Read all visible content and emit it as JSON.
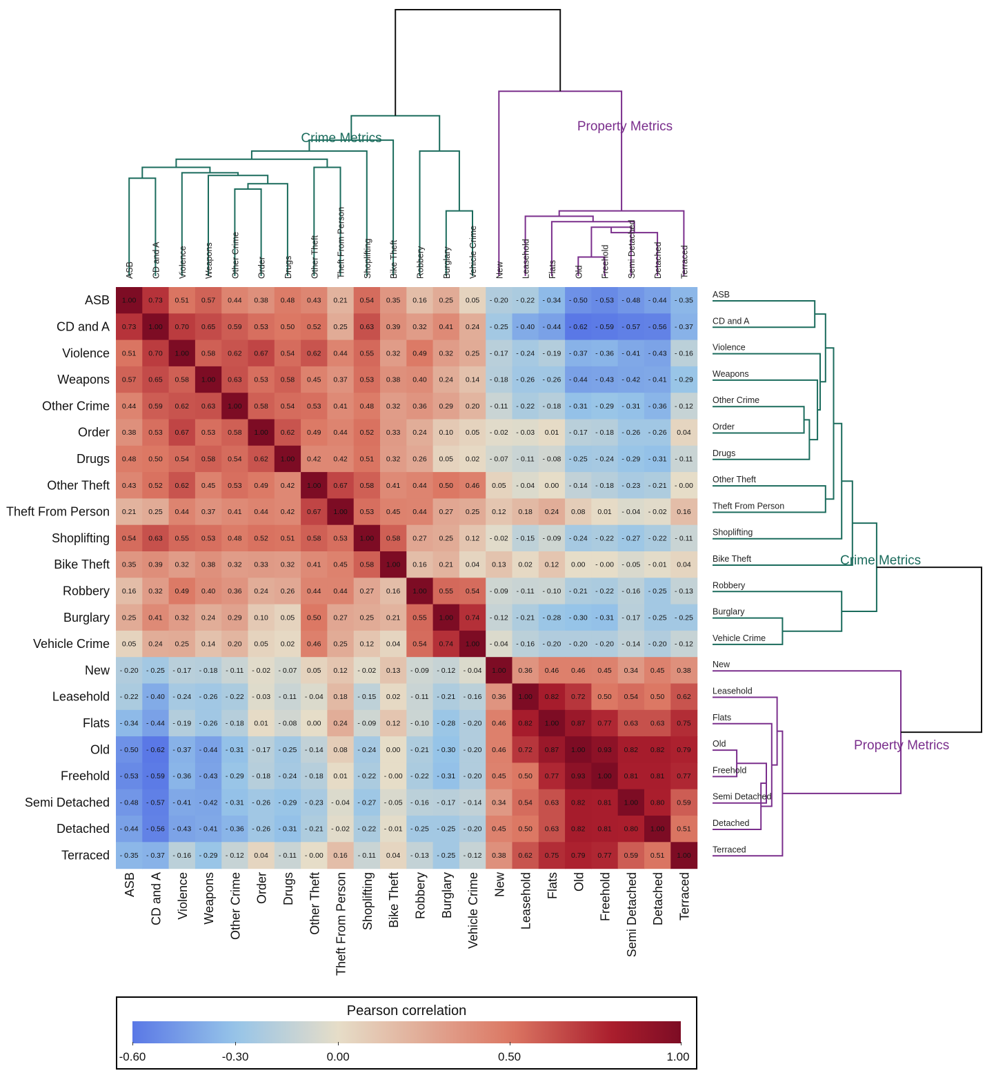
{
  "chart_data": {
    "type": "heatmap",
    "colorbar": {
      "title": "Pearson correlation",
      "min": -0.6,
      "max": 1.0,
      "ticks": [
        -0.6,
        -0.3,
        0.0,
        0.5,
        1.0
      ],
      "tick_labels": [
        "-0.60",
        "-0.30",
        "0.00",
        "0.50",
        "1.00"
      ],
      "colors": [
        "#5a78e6",
        "#e6ddc8",
        "#7d0c24"
      ]
    },
    "cluster_labels": {
      "crime": "Crime Metrics",
      "property": "Property Metrics",
      "crime_color": "#1a6b5c",
      "property_color": "#7a2e8c"
    },
    "labels": [
      "ASB",
      "CD and A",
      "Violence",
      "Weapons",
      "Other Crime",
      "Order",
      "Drugs",
      "Other Theft",
      "Theft From Person",
      "Shoplifting",
      "Bike Theft",
      "Robbery",
      "Burglary",
      "Vehicle Crime",
      "New",
      "Leasehold",
      "Flats",
      "Old",
      "Freehold",
      "Semi Detached",
      "Detached",
      "Terraced"
    ],
    "values": [
      [
        1.0,
        0.73,
        0.51,
        0.57,
        0.44,
        0.38,
        0.48,
        0.43,
        0.21,
        0.54,
        0.35,
        0.16,
        0.25,
        0.05,
        -0.2,
        -0.22,
        -0.34,
        -0.5,
        -0.53,
        -0.48,
        -0.44,
        -0.35
      ],
      [
        0.73,
        1.0,
        0.7,
        0.65,
        0.59,
        0.53,
        0.5,
        0.52,
        0.25,
        0.63,
        0.39,
        0.32,
        0.41,
        0.24,
        -0.25,
        -0.4,
        -0.44,
        -0.62,
        -0.59,
        -0.57,
        -0.56,
        -0.37
      ],
      [
        0.51,
        0.7,
        1.0,
        0.58,
        0.62,
        0.67,
        0.54,
        0.62,
        0.44,
        0.55,
        0.32,
        0.49,
        0.32,
        0.25,
        -0.17,
        -0.24,
        -0.19,
        -0.37,
        -0.36,
        -0.41,
        -0.43,
        -0.16
      ],
      [
        0.57,
        0.65,
        0.58,
        1.0,
        0.63,
        0.53,
        0.58,
        0.45,
        0.37,
        0.53,
        0.38,
        0.4,
        0.24,
        0.14,
        -0.18,
        -0.26,
        -0.26,
        -0.44,
        -0.43,
        -0.42,
        -0.41,
        -0.29
      ],
      [
        0.44,
        0.59,
        0.62,
        0.63,
        1.0,
        0.58,
        0.54,
        0.53,
        0.41,
        0.48,
        0.32,
        0.36,
        0.29,
        0.2,
        -0.11,
        -0.22,
        -0.18,
        -0.31,
        -0.29,
        -0.31,
        -0.36,
        -0.12
      ],
      [
        0.38,
        0.53,
        0.67,
        0.53,
        0.58,
        1.0,
        0.62,
        0.49,
        0.44,
        0.52,
        0.33,
        0.24,
        0.1,
        0.05,
        -0.02,
        -0.03,
        0.01,
        -0.17,
        -0.18,
        -0.26,
        -0.26,
        0.04
      ],
      [
        0.48,
        0.5,
        0.54,
        0.58,
        0.54,
        0.62,
        1.0,
        0.42,
        0.42,
        0.51,
        0.32,
        0.26,
        0.05,
        0.02,
        -0.07,
        -0.11,
        -0.08,
        -0.25,
        -0.24,
        -0.29,
        -0.31,
        -0.11
      ],
      [
        0.43,
        0.52,
        0.62,
        0.45,
        0.53,
        0.49,
        0.42,
        1.0,
        0.67,
        0.58,
        0.41,
        0.44,
        0.5,
        0.46,
        0.05,
        -0.04,
        0.0,
        -0.14,
        -0.18,
        -0.23,
        -0.21,
        -0.0
      ],
      [
        0.21,
        0.25,
        0.44,
        0.37,
        0.41,
        0.44,
        0.42,
        0.67,
        1.0,
        0.53,
        0.45,
        0.44,
        0.27,
        0.25,
        0.12,
        0.18,
        0.24,
        0.08,
        0.01,
        -0.04,
        -0.02,
        0.16
      ],
      [
        0.54,
        0.63,
        0.55,
        0.53,
        0.48,
        0.52,
        0.51,
        0.58,
        0.53,
        1.0,
        0.58,
        0.27,
        0.25,
        0.12,
        -0.02,
        -0.15,
        -0.09,
        -0.24,
        -0.22,
        -0.27,
        -0.22,
        -0.11
      ],
      [
        0.35,
        0.39,
        0.32,
        0.38,
        0.32,
        0.33,
        0.32,
        0.41,
        0.45,
        0.58,
        1.0,
        0.16,
        0.21,
        0.04,
        0.13,
        0.02,
        0.12,
        0.0,
        -0.0,
        -0.05,
        -0.01,
        0.04
      ],
      [
        0.16,
        0.32,
        0.49,
        0.4,
        0.36,
        0.24,
        0.26,
        0.44,
        0.44,
        0.27,
        0.16,
        1.0,
        0.55,
        0.54,
        -0.09,
        -0.11,
        -0.1,
        -0.21,
        -0.22,
        -0.16,
        -0.25,
        -0.13
      ],
      [
        0.25,
        0.41,
        0.32,
        0.24,
        0.29,
        0.1,
        0.05,
        0.5,
        0.27,
        0.25,
        0.21,
        0.55,
        1.0,
        0.74,
        -0.12,
        -0.21,
        -0.28,
        -0.3,
        -0.31,
        -0.17,
        -0.25,
        -0.25
      ],
      [
        0.05,
        0.24,
        0.25,
        0.14,
        0.2,
        0.05,
        0.02,
        0.46,
        0.25,
        0.12,
        0.04,
        0.54,
        0.74,
        1.0,
        -0.04,
        -0.16,
        -0.2,
        -0.2,
        -0.2,
        -0.14,
        -0.2,
        -0.12
      ],
      [
        -0.2,
        -0.25,
        -0.17,
        -0.18,
        -0.11,
        -0.02,
        -0.07,
        0.05,
        0.12,
        -0.02,
        0.13,
        -0.09,
        -0.12,
        -0.04,
        1.0,
        0.36,
        0.46,
        0.46,
        0.45,
        0.34,
        0.45,
        0.38
      ],
      [
        -0.22,
        -0.4,
        -0.24,
        -0.26,
        -0.22,
        -0.03,
        -0.11,
        -0.04,
        0.18,
        -0.15,
        0.02,
        -0.11,
        -0.21,
        -0.16,
        0.36,
        1.0,
        0.82,
        0.72,
        0.5,
        0.54,
        0.5,
        0.62
      ],
      [
        -0.34,
        -0.44,
        -0.19,
        -0.26,
        -0.18,
        0.01,
        -0.08,
        0.0,
        0.24,
        -0.09,
        0.12,
        -0.1,
        -0.28,
        -0.2,
        0.46,
        0.82,
        1.0,
        0.87,
        0.77,
        0.63,
        0.63,
        0.75
      ],
      [
        -0.5,
        -0.62,
        -0.37,
        -0.44,
        -0.31,
        -0.17,
        -0.25,
        -0.14,
        0.08,
        -0.24,
        0.0,
        -0.21,
        -0.3,
        -0.2,
        0.46,
        0.72,
        0.87,
        1.0,
        0.93,
        0.82,
        0.82,
        0.79
      ],
      [
        -0.53,
        -0.59,
        -0.36,
        -0.43,
        -0.29,
        -0.18,
        -0.24,
        -0.18,
        0.01,
        -0.22,
        -0.0,
        -0.22,
        -0.31,
        -0.2,
        0.45,
        0.5,
        0.77,
        0.93,
        1.0,
        0.81,
        0.81,
        0.77
      ],
      [
        -0.48,
        -0.57,
        -0.41,
        -0.42,
        -0.31,
        -0.26,
        -0.29,
        -0.23,
        -0.04,
        -0.27,
        -0.05,
        -0.16,
        -0.17,
        -0.14,
        0.34,
        0.54,
        0.63,
        0.82,
        0.81,
        1.0,
        0.8,
        0.59
      ],
      [
        -0.44,
        -0.56,
        -0.43,
        -0.41,
        -0.36,
        -0.26,
        -0.31,
        -0.21,
        -0.02,
        -0.22,
        -0.01,
        -0.25,
        -0.25,
        -0.2,
        0.45,
        0.5,
        0.63,
        0.82,
        0.81,
        0.8,
        1.0,
        0.51
      ],
      [
        -0.35,
        -0.37,
        -0.16,
        -0.29,
        -0.12,
        0.04,
        -0.11,
        -0.0,
        0.16,
        -0.11,
        0.04,
        -0.13,
        -0.25,
        -0.12,
        0.38,
        0.62,
        0.75,
        0.79,
        0.77,
        0.59,
        0.51,
        1.0
      ]
    ]
  }
}
